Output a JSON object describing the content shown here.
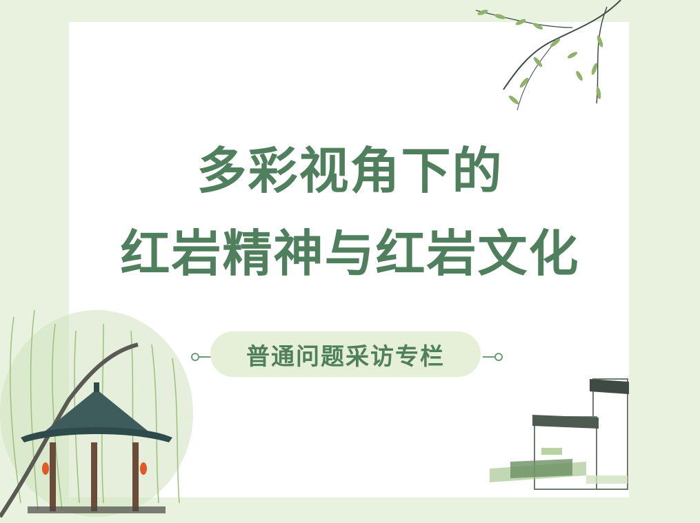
{
  "title": {
    "line1": "多彩视角下的",
    "line2": "红岩精神与红岩文化"
  },
  "subtitle": "普通问题采访专栏",
  "colors": {
    "background": "#e9f1df",
    "card": "#ffffff",
    "title": "#4f7f5c",
    "pill": "#e6f0d8",
    "leaf": "#8fb36b",
    "ink": "#3f4a45"
  },
  "decorations": [
    "willow-branch",
    "willow-tree",
    "pavilion",
    "traditional-houses"
  ]
}
